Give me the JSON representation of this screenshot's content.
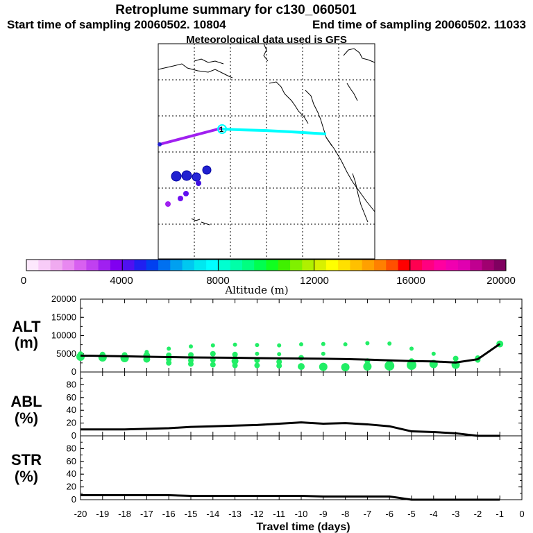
{
  "header": {
    "title": "Retroplume summary for c130_060501",
    "start_label": "Start time of sampling 20060502. 10804",
    "end_label": "End time of sampling 20060502. 11033",
    "met_label": "Meteorological data used is GFS"
  },
  "colors": {
    "trajectory_purple": "#a020f0",
    "trajectory_cyan": "#00ffff",
    "marker_green": "#22ee66",
    "blue_marker": "#2020d0",
    "line_black": "#000000"
  },
  "colorbar": {
    "title": "Altitude (m)",
    "tick_labels": [
      "0",
      "4000",
      "8000",
      "12000",
      "16000",
      "20000"
    ],
    "colors": [
      "#fde8fd",
      "#f8ccf8",
      "#f0aaf0",
      "#e888f0",
      "#d860f0",
      "#c040f0",
      "#a020f0",
      "#8000f0",
      "#5010f0",
      "#2020f0",
      "#0040f0",
      "#0070f0",
      "#00a0f0",
      "#00c8f0",
      "#00e8f0",
      "#00ffff",
      "#00ffd0",
      "#00ffa8",
      "#00ff80",
      "#00ff50",
      "#10ff20",
      "#40f000",
      "#80f000",
      "#b0f000",
      "#d8f000",
      "#ffff00",
      "#ffe000",
      "#ffc000",
      "#ffa000",
      "#ff8000",
      "#ff5000",
      "#ff0000",
      "#ff0050",
      "#ff0080",
      "#ff00a0",
      "#f000b0",
      "#e000b0",
      "#c00090",
      "#a00070",
      "#800060"
    ]
  },
  "map": {
    "purple_segment_label": "1",
    "cyan_segment": "aircraft sampling track",
    "clusters": [
      {
        "lon": -160.5,
        "lat": 24.0,
        "alt": 4000
      },
      {
        "lon": -158.5,
        "lat": 24.0,
        "alt": 4200
      },
      {
        "lon": -157.5,
        "lat": 23.8,
        "alt": 4300
      },
      {
        "lon": -156.5,
        "lat": 25.0,
        "alt": 4500
      },
      {
        "lon": -158.0,
        "lat": 22.5,
        "alt": 3900
      },
      {
        "lon": -161.5,
        "lat": 18.0,
        "alt": 3200
      },
      {
        "lon": -162.5,
        "lat": 16.5,
        "alt": 3000
      },
      {
        "lon": -165.0,
        "lat": 15.5,
        "alt": 2800
      }
    ]
  },
  "chart_data": [
    {
      "type": "scatter",
      "panel_label_top": "ALT",
      "panel_label_bottom": "(m)",
      "ylim": [
        0,
        20000
      ],
      "yticks": [
        "0",
        "5000",
        "10000",
        "15000",
        "20000"
      ],
      "xlim": [
        -20,
        0
      ],
      "xticks": [
        "-20",
        "-19",
        "-18",
        "-17",
        "-16",
        "-15",
        "-14",
        "-13",
        "-12",
        "-11",
        "-10",
        "-9",
        "-8",
        "-7",
        "-6",
        "-5",
        "-4",
        "-3",
        "-2",
        "-1",
        "0"
      ],
      "mean_line": {
        "x": [
          -20,
          -19,
          -18,
          -17,
          -16,
          -15,
          -14,
          -13,
          -12,
          -11,
          -10,
          -9,
          -8,
          -7,
          -6,
          -5,
          -4,
          -3,
          -2,
          -1
        ],
        "y": [
          4500,
          4400,
          4300,
          4200,
          4100,
          4000,
          3950,
          3900,
          3800,
          3750,
          3700,
          3650,
          3550,
          3400,
          3200,
          3000,
          2900,
          2600,
          3500,
          7700
        ]
      },
      "points": [
        {
          "x": -20,
          "y": 4200,
          "s": 6
        },
        {
          "x": -20,
          "y": 4900,
          "s": 4
        },
        {
          "x": -19,
          "y": 4000,
          "s": 6
        },
        {
          "x": -19,
          "y": 4800,
          "s": 4
        },
        {
          "x": -18,
          "y": 3800,
          "s": 6
        },
        {
          "x": -18,
          "y": 4700,
          "s": 4
        },
        {
          "x": -17,
          "y": 3500,
          "s": 5
        },
        {
          "x": -17,
          "y": 4500,
          "s": 5
        },
        {
          "x": -17,
          "y": 5500,
          "s": 3
        },
        {
          "x": -16,
          "y": 2500,
          "s": 4
        },
        {
          "x": -16,
          "y": 3500,
          "s": 4
        },
        {
          "x": -16,
          "y": 4600,
          "s": 4
        },
        {
          "x": -16,
          "y": 6400,
          "s": 3
        },
        {
          "x": -15,
          "y": 2200,
          "s": 4
        },
        {
          "x": -15,
          "y": 3200,
          "s": 4
        },
        {
          "x": -15,
          "y": 4700,
          "s": 4
        },
        {
          "x": -15,
          "y": 7000,
          "s": 3
        },
        {
          "x": -14,
          "y": 2000,
          "s": 4
        },
        {
          "x": -14,
          "y": 3300,
          "s": 4
        },
        {
          "x": -14,
          "y": 5000,
          "s": 4
        },
        {
          "x": -14,
          "y": 7300,
          "s": 3
        },
        {
          "x": -13,
          "y": 1800,
          "s": 4
        },
        {
          "x": -13,
          "y": 3000,
          "s": 5
        },
        {
          "x": -13,
          "y": 4800,
          "s": 4
        },
        {
          "x": -13,
          "y": 7500,
          "s": 3
        },
        {
          "x": -12,
          "y": 1800,
          "s": 4
        },
        {
          "x": -12,
          "y": 3200,
          "s": 4
        },
        {
          "x": -12,
          "y": 5000,
          "s": 3
        },
        {
          "x": -12,
          "y": 7400,
          "s": 3
        },
        {
          "x": -11,
          "y": 1700,
          "s": 4
        },
        {
          "x": -11,
          "y": 2800,
          "s": 4
        },
        {
          "x": -11,
          "y": 4900,
          "s": 3
        },
        {
          "x": -11,
          "y": 7300,
          "s": 3
        },
        {
          "x": -10,
          "y": 1500,
          "s": 5
        },
        {
          "x": -10,
          "y": 3900,
          "s": 4
        },
        {
          "x": -10,
          "y": 7600,
          "s": 3
        },
        {
          "x": -9,
          "y": 1400,
          "s": 6
        },
        {
          "x": -9,
          "y": 5000,
          "s": 3
        },
        {
          "x": -9,
          "y": 7700,
          "s": 3
        },
        {
          "x": -8,
          "y": 1300,
          "s": 6
        },
        {
          "x": -8,
          "y": 7600,
          "s": 3
        },
        {
          "x": -7,
          "y": 1500,
          "s": 6
        },
        {
          "x": -7,
          "y": 3000,
          "s": 4
        },
        {
          "x": -7,
          "y": 7900,
          "s": 3
        },
        {
          "x": -6,
          "y": 1700,
          "s": 7
        },
        {
          "x": -6,
          "y": 2500,
          "s": 4
        },
        {
          "x": -6,
          "y": 7800,
          "s": 3
        },
        {
          "x": -5,
          "y": 1900,
          "s": 7
        },
        {
          "x": -5,
          "y": 3000,
          "s": 4
        },
        {
          "x": -5,
          "y": 6400,
          "s": 3
        },
        {
          "x": -4,
          "y": 2200,
          "s": 6
        },
        {
          "x": -4,
          "y": 5000,
          "s": 3
        },
        {
          "x": -3,
          "y": 2000,
          "s": 6
        },
        {
          "x": -3,
          "y": 3700,
          "s": 4
        },
        {
          "x": -2,
          "y": 3300,
          "s": 4
        },
        {
          "x": -2,
          "y": 3800,
          "s": 4
        },
        {
          "x": -1,
          "y": 7700,
          "s": 5
        }
      ]
    },
    {
      "type": "line",
      "panel_label_top": "ABL",
      "panel_label_bottom": "(%)",
      "ylim": [
        0,
        100
      ],
      "yticks": [
        "0",
        "20",
        "40",
        "60",
        "80"
      ],
      "x": [
        -20,
        -19,
        -18,
        -17,
        -16,
        -15,
        -14,
        -13,
        -12,
        -11,
        -10,
        -9,
        -8,
        -7,
        -6,
        -5,
        -4,
        -3,
        -2,
        -1
      ],
      "y": [
        10,
        10,
        10,
        11,
        12,
        14,
        15,
        16,
        17,
        19,
        21,
        19,
        20,
        18,
        15,
        7,
        6,
        4,
        0,
        0
      ]
    },
    {
      "type": "line",
      "panel_label_top": "STR",
      "panel_label_bottom": "(%)",
      "ylim": [
        0,
        100
      ],
      "yticks": [
        "0",
        "20",
        "40",
        "60",
        "80"
      ],
      "x": [
        -20,
        -19,
        -18,
        -17,
        -16,
        -15,
        -14,
        -13,
        -12,
        -11,
        -10,
        -9,
        -8,
        -7,
        -6,
        -5,
        -4,
        -3,
        -2,
        -1
      ],
      "y": [
        7,
        7,
        7,
        7,
        7,
        6,
        6,
        6,
        6,
        6,
        6,
        5,
        5,
        5,
        5,
        0,
        0,
        0,
        0,
        0
      ],
      "xlabel": "Travel time (days)"
    }
  ]
}
